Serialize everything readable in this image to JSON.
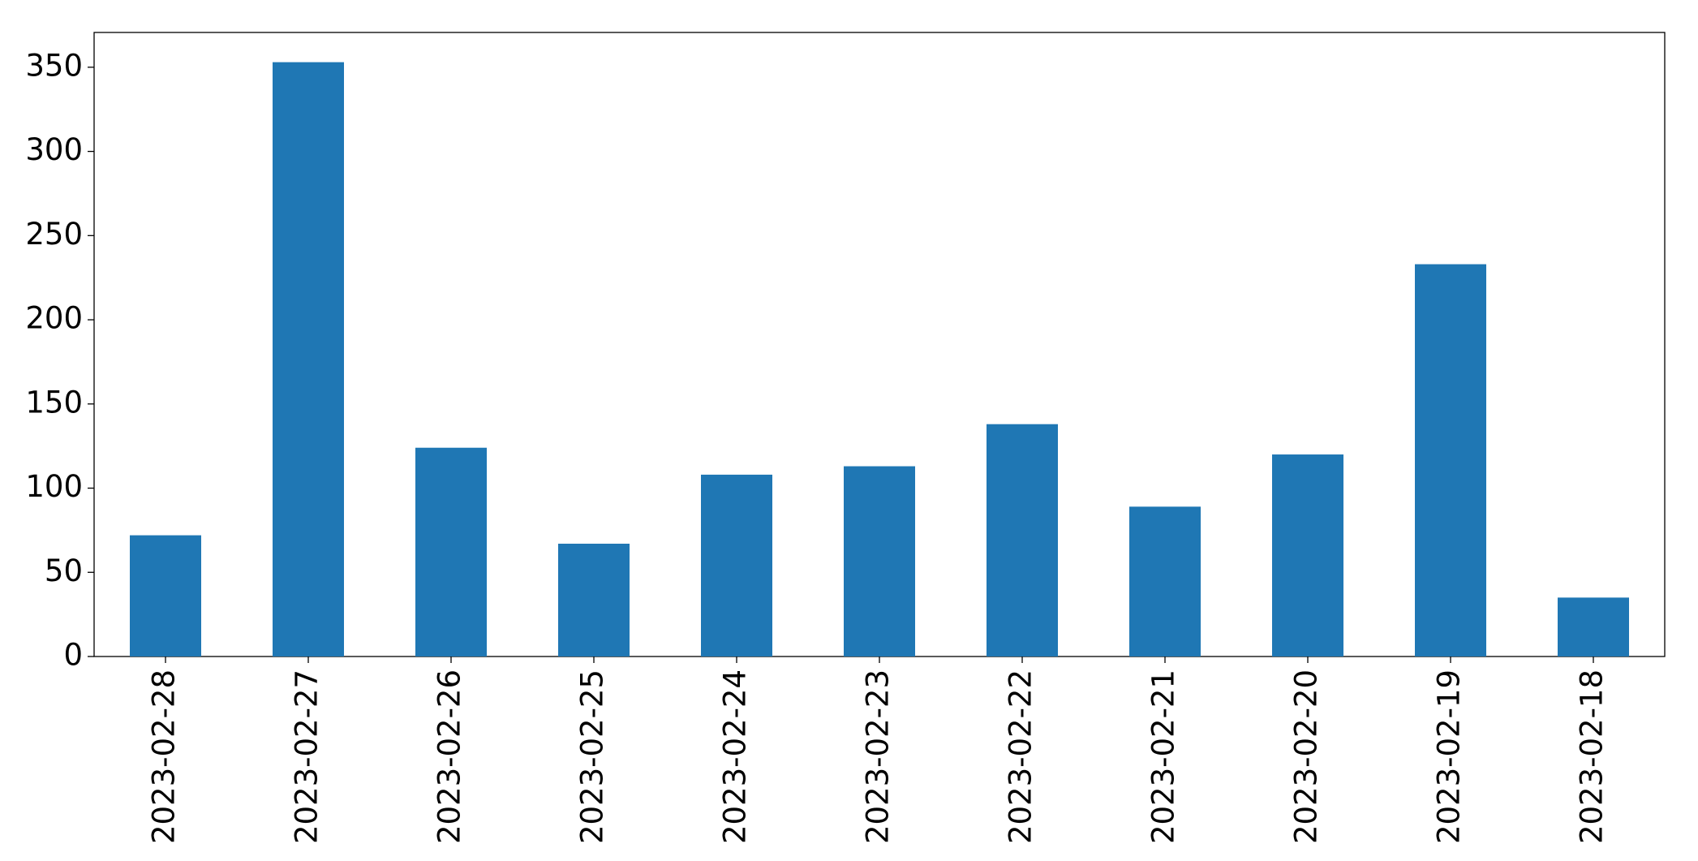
{
  "chart_data": {
    "type": "bar",
    "categories": [
      "2023-02-28",
      "2023-02-27",
      "2023-02-26",
      "2023-02-25",
      "2023-02-24",
      "2023-02-23",
      "2023-02-22",
      "2023-02-21",
      "2023-02-20",
      "2023-02-19",
      "2023-02-18"
    ],
    "values": [
      72,
      353,
      124,
      67,
      108,
      113,
      138,
      89,
      120,
      233,
      35
    ],
    "color": "#1f77b4",
    "ylim": [
      0,
      370.65
    ],
    "yticks": [
      0,
      50,
      100,
      150,
      200,
      250,
      300,
      350
    ],
    "grid": false
  }
}
